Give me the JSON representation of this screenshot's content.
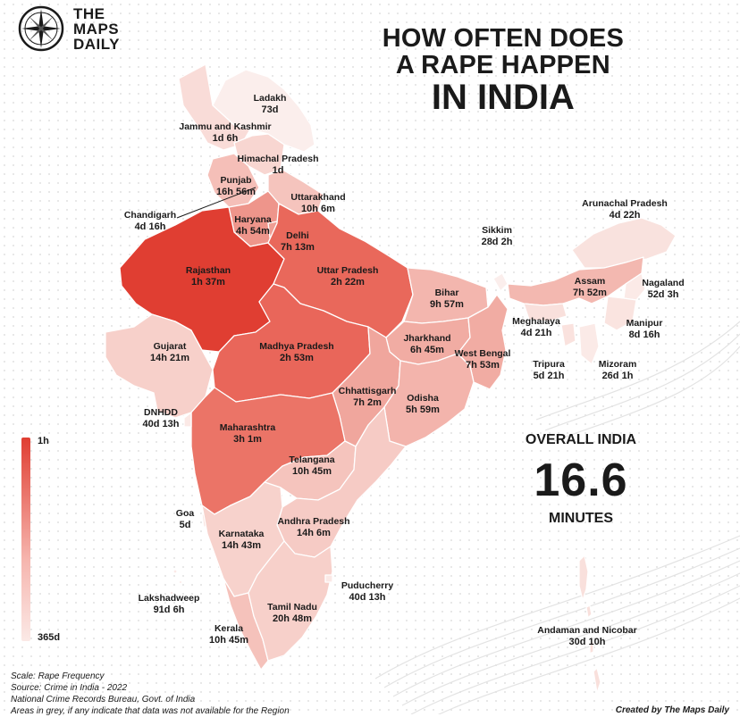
{
  "brand": {
    "line1": "THE",
    "line2": "MAPS",
    "line3": "DAILY"
  },
  "title": {
    "line1": "HOW OFTEN DOES",
    "line2": "A RAPE HAPPEN",
    "line3": "IN INDIA"
  },
  "overall": {
    "label": "OVERALL INDIA",
    "value": "16.6",
    "unit": "MINUTES"
  },
  "legend": {
    "min_label": "1h",
    "max_label": "365d",
    "colors": {
      "high": "#e03e32",
      "low": "#fbe9e6"
    }
  },
  "states": [
    {
      "name": "Ladakh",
      "value": "73d"
    },
    {
      "name": "Jammu and Kashmir",
      "value": "1d 6h"
    },
    {
      "name": "Himachal Pradesh",
      "value": "1d"
    },
    {
      "name": "Punjab",
      "value": "16h 56m"
    },
    {
      "name": "Uttarakhand",
      "value": "10h 6m"
    },
    {
      "name": "Chandigarh",
      "value": "4d 16h"
    },
    {
      "name": "Haryana",
      "value": "4h 54m"
    },
    {
      "name": "Delhi",
      "value": "7h 13m"
    },
    {
      "name": "Rajasthan",
      "value": "1h 37m"
    },
    {
      "name": "Uttar Pradesh",
      "value": "2h 22m"
    },
    {
      "name": "Sikkim",
      "value": "28d 2h"
    },
    {
      "name": "Arunachal Pradesh",
      "value": "4d 22h"
    },
    {
      "name": "Bihar",
      "value": "9h 57m"
    },
    {
      "name": "Assam",
      "value": "7h 52m"
    },
    {
      "name": "Nagaland",
      "value": "52d 3h"
    },
    {
      "name": "Gujarat",
      "value": "14h 21m"
    },
    {
      "name": "Madhya Pradesh",
      "value": "2h 53m"
    },
    {
      "name": "Jharkhand",
      "value": "6h 45m"
    },
    {
      "name": "Meghalaya",
      "value": "4d 21h"
    },
    {
      "name": "Manipur",
      "value": "8d 16h"
    },
    {
      "name": "West Bengal",
      "value": "7h 53m"
    },
    {
      "name": "Tripura",
      "value": "5d 21h"
    },
    {
      "name": "Mizoram",
      "value": "26d 1h"
    },
    {
      "name": "Chhattisgarh",
      "value": "7h 2m"
    },
    {
      "name": "Odisha",
      "value": "5h 59m"
    },
    {
      "name": "DNHDD",
      "value": "40d 13h"
    },
    {
      "name": "Maharashtra",
      "value": "3h 1m"
    },
    {
      "name": "Telangana",
      "value": "10h 45m"
    },
    {
      "name": "Goa",
      "value": "5d"
    },
    {
      "name": "Karnataka",
      "value": "14h 43m"
    },
    {
      "name": "Andhra Pradesh",
      "value": "14h 6m"
    },
    {
      "name": "Puducherry",
      "value": "40d 13h"
    },
    {
      "name": "Lakshadweep",
      "value": "91d 6h"
    },
    {
      "name": "Tamil Nadu",
      "value": "20h 48m"
    },
    {
      "name": "Kerala",
      "value": "10h 45m"
    },
    {
      "name": "Andaman and Nicobar",
      "value": "30d 10h"
    }
  ],
  "footer": {
    "scale": "Scale: Rape Frequency",
    "source": "Source: Crime in India - 2022",
    "agency": "National Crime Records Bureau, Govt. of India",
    "note": "Areas in grey, if any indicate that data was not available for the Region"
  },
  "credit": "Created by The Maps Daily"
}
